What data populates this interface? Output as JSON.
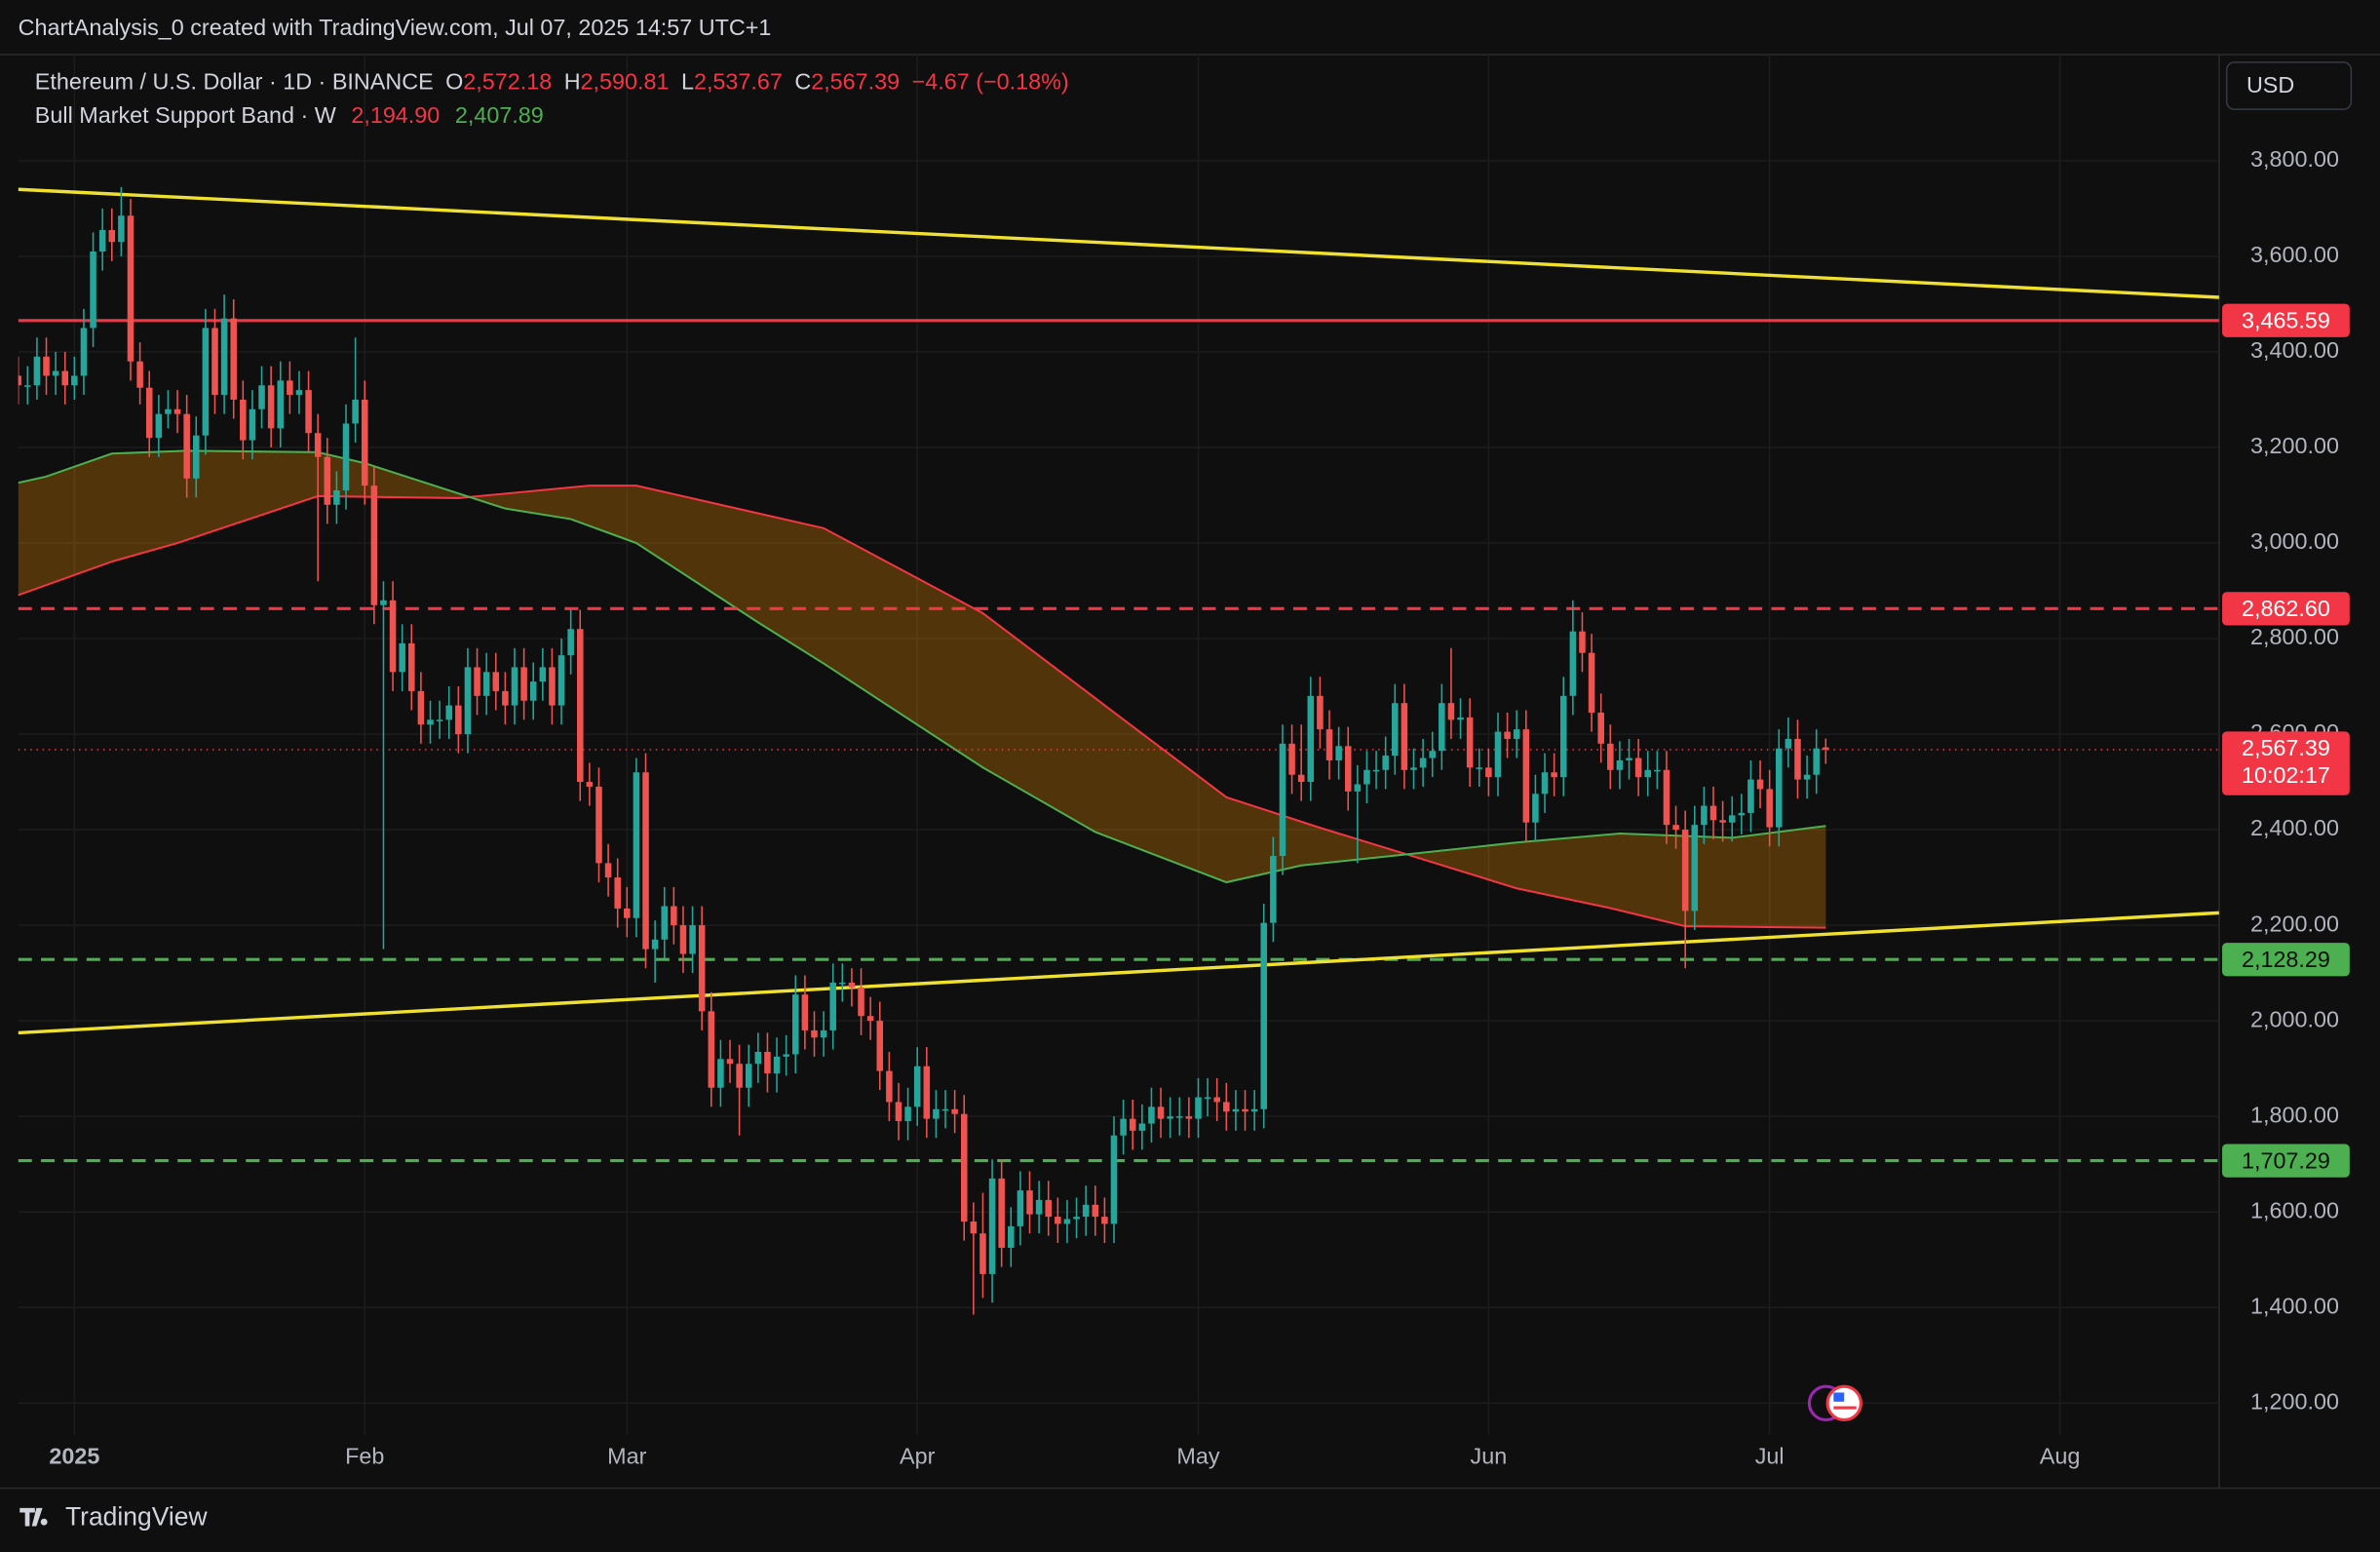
{
  "header": {
    "title": "ChartAnalysis_0 created with TradingView.com, Jul 07, 2025 14:57 UTC+1"
  },
  "chart_data": {
    "type": "candlestick",
    "legend": {
      "symbol": "Ethereum / U.S. Dollar · 1D · BINANCE",
      "open_key": "O",
      "open": "2,572.18",
      "high_key": "H",
      "high": "2,590.81",
      "low_key": "L",
      "low": "2,537.67",
      "close_key": "C",
      "close": "2,567.39",
      "change": "−4.67 (−0.18%)"
    },
    "categories": [
      null,
      null,
      null,
      null,
      null,
      null,
      "2025",
      null,
      null,
      null,
      null,
      null,
      null,
      null,
      null,
      null,
      null,
      null,
      null,
      null,
      null,
      null,
      null,
      null,
      null,
      null,
      null,
      null,
      null,
      null,
      null,
      null,
      null,
      null,
      null,
      null,
      null,
      "Feb",
      null,
      null,
      null,
      null,
      null,
      null,
      null,
      null,
      null,
      null,
      null,
      null,
      null,
      null,
      null,
      null,
      null,
      null,
      null,
      null,
      null,
      null,
      null,
      null,
      null,
      null,
      null,
      "Mar",
      null,
      null,
      null,
      null,
      null,
      null,
      null,
      null,
      null,
      null,
      null,
      null,
      null,
      null,
      null,
      null,
      null,
      null,
      null,
      null,
      null,
      null,
      null,
      null,
      null,
      null,
      null,
      null,
      null,
      null,
      "Apr",
      null,
      null,
      null,
      null,
      null,
      null,
      null,
      null,
      null,
      null,
      null,
      null,
      null,
      null,
      null,
      null,
      null,
      null,
      null,
      null,
      null,
      null,
      null,
      null,
      null,
      null,
      null,
      null,
      null,
      "May",
      null,
      null,
      null,
      null,
      null,
      null,
      null,
      null,
      null,
      null,
      null,
      null,
      null,
      null,
      null,
      null,
      null,
      null,
      null,
      null,
      null,
      null,
      null,
      null,
      null,
      null,
      null,
      null,
      null,
      null,
      "Jun",
      null,
      null,
      null,
      null,
      null,
      null,
      null,
      null,
      null,
      null,
      null,
      null,
      null,
      null,
      null,
      null,
      null,
      null,
      null,
      null,
      null,
      null,
      null,
      null,
      null,
      null,
      null,
      null,
      null,
      "Jul",
      null,
      null,
      null,
      null,
      null,
      null,
      null,
      null,
      null,
      null,
      null,
      null,
      null,
      null,
      null,
      null,
      null,
      null,
      null,
      null,
      null,
      null,
      null,
      null,
      null,
      null,
      null,
      null,
      null,
      null,
      "Aug",
      null,
      null,
      null,
      null,
      null,
      null,
      null,
      null,
      null,
      null,
      null,
      null,
      null,
      null,
      null,
      null,
      null
    ],
    "open": [
      3350,
      3330,
      3330,
      3390,
      3350,
      3360,
      3330,
      3350,
      3450,
      3610,
      3655,
      3630,
      3685,
      3380,
      3325,
      3220,
      3270,
      3280,
      3270,
      3135,
      3225,
      3450,
      3310,
      3470,
      3300,
      3215,
      3280,
      3330,
      3240,
      3340,
      3310,
      3320,
      3230,
      3180,
      3080,
      3110,
      3250,
      3300,
      3120,
      2870,
      2880,
      2730,
      2790,
      2690,
      2620,
      2630,
      2630,
      2660,
      2600,
      2740,
      2680,
      2730,
      2690,
      2660,
      2740,
      2670,
      2710,
      2740,
      2660,
      2765,
      2820,
      2500,
      2490,
      2330,
      2300,
      2235,
      2215,
      2520,
      2150,
      2170,
      2240,
      2200,
      2140,
      2200,
      2020,
      1860,
      1920,
      1910,
      1860,
      1910,
      1935,
      1890,
      1925,
      1930,
      2055,
      1980,
      1965,
      1980,
      2080,
      2080,
      2070,
      2010,
      2000,
      1895,
      1830,
      1790,
      1820,
      1905,
      1795,
      1815,
      1815,
      1805,
      1580,
      1555,
      1470,
      1670,
      1525,
      1570,
      1645,
      1595,
      1625,
      1590,
      1575,
      1585,
      1590,
      1615,
      1590,
      1575,
      1760,
      1795,
      1770,
      1785,
      1820,
      1795,
      1800,
      1800,
      1795,
      1840,
      1840,
      1830,
      1810,
      1815,
      1810,
      1815,
      2205,
      2345,
      2580,
      2515,
      2500,
      2680,
      2610,
      2545,
      2575,
      2480,
      2495,
      2525,
      2525,
      2555,
      2665,
      2525,
      2530,
      2550,
      2565,
      2665,
      2630,
      2635,
      2530,
      2530,
      2510,
      2605,
      2590,
      2610,
      2415,
      2475,
      2520,
      2510,
      2680,
      2815,
      2770,
      2645,
      2580,
      2525,
      2545,
      2550,
      2510,
      2525,
      2525,
      2410,
      2400,
      2230,
      2410,
      2450,
      2420,
      2415,
      2430,
      2435,
      2505,
      2485,
      2405,
      2570,
      2590,
      2505,
      2515,
      2572.18,
      null,
      null,
      null,
      null,
      null,
      null,
      null,
      null,
      null,
      null,
      null,
      null,
      null,
      null,
      null,
      null,
      null,
      null,
      null,
      null,
      null,
      null,
      null,
      null,
      null,
      null,
      null,
      null,
      null,
      null,
      null,
      null,
      null,
      null,
      null,
      null,
      null,
      null,
      null,
      null,
      null,
      null
    ],
    "high": [
      3390,
      3370,
      3430,
      3430,
      3400,
      3400,
      3390,
      3490,
      3650,
      3700,
      3700,
      3745,
      3720,
      3420,
      3360,
      3310,
      3320,
      3320,
      3310,
      3265,
      3490,
      3490,
      3520,
      3510,
      3340,
      3320,
      3370,
      3370,
      3380,
      3380,
      3360,
      3360,
      3270,
      3220,
      3150,
      3290,
      3430,
      3340,
      3160,
      2920,
      2920,
      2830,
      2830,
      2730,
      2670,
      2670,
      2700,
      2700,
      2780,
      2780,
      2770,
      2770,
      2730,
      2780,
      2780,
      2750,
      2780,
      2780,
      2800,
      2860,
      2860,
      2540,
      2530,
      2370,
      2340,
      2280,
      2550,
      2560,
      2210,
      2280,
      2280,
      2240,
      2240,
      2240,
      2060,
      1960,
      1960,
      1950,
      1950,
      1975,
      1975,
      1965,
      1970,
      2095,
      2095,
      2020,
      2020,
      2120,
      2120,
      2110,
      2110,
      2050,
      2040,
      1935,
      1870,
      1860,
      1945,
      1945,
      1855,
      1855,
      1855,
      1845,
      1620,
      1640,
      1710,
      1710,
      1610,
      1685,
      1685,
      1665,
      1665,
      1630,
      1625,
      1630,
      1655,
      1655,
      1630,
      1800,
      1835,
      1835,
      1825,
      1860,
      1860,
      1840,
      1840,
      1840,
      1880,
      1880,
      1880,
      1870,
      1855,
      1855,
      1855,
      2245,
      2385,
      2620,
      2620,
      2620,
      2720,
      2720,
      2650,
      2615,
      2615,
      2535,
      2565,
      2565,
      2595,
      2705,
      2705,
      2570,
      2590,
      2605,
      2705,
      2780,
      2675,
      2675,
      2570,
      2570,
      2645,
      2645,
      2650,
      2650,
      2515,
      2560,
      2560,
      2720,
      2880,
      2855,
      2810,
      2685,
      2620,
      2585,
      2590,
      2590,
      2565,
      2565,
      2565,
      2450,
      2440,
      2450,
      2490,
      2490,
      2460,
      2470,
      2475,
      2545,
      2545,
      2525,
      2610,
      2635,
      2630,
      2555,
      2610,
      2590.81,
      null,
      null,
      null,
      null,
      null,
      null,
      null,
      null,
      null,
      null,
      null,
      null,
      null,
      null,
      null,
      null,
      null,
      null,
      null,
      null,
      null,
      null,
      null,
      null,
      null,
      null,
      null,
      null,
      null,
      null,
      null,
      null,
      null,
      null,
      null,
      null,
      null,
      null,
      null,
      null,
      null,
      null
    ],
    "low": [
      3290,
      3290,
      3300,
      3310,
      3310,
      3290,
      3300,
      3310,
      3410,
      3570,
      3590,
      3600,
      3340,
      3290,
      3180,
      3180,
      3240,
      3230,
      3095,
      3095,
      3185,
      3270,
      3270,
      3260,
      3175,
      3175,
      3240,
      3200,
      3200,
      3270,
      3270,
      3190,
      2920,
      3040,
      3040,
      3070,
      3210,
      3080,
      2830,
      2150,
      2690,
      2690,
      2650,
      2580,
      2580,
      2590,
      2590,
      2560,
      2560,
      2640,
      2640,
      2650,
      2620,
      2620,
      2630,
      2630,
      2670,
      2620,
      2620,
      2725,
      2460,
      2450,
      2290,
      2260,
      2195,
      2175,
      2175,
      2110,
      2080,
      2130,
      2160,
      2100,
      2100,
      1980,
      1820,
      1820,
      1870,
      1760,
      1820,
      1870,
      1850,
      1850,
      1885,
      1890,
      1940,
      1925,
      1925,
      1940,
      2040,
      2030,
      1970,
      1960,
      1855,
      1790,
      1750,
      1750,
      1780,
      1755,
      1755,
      1775,
      1765,
      1540,
      1385,
      1420,
      1410,
      1485,
      1485,
      1530,
      1555,
      1555,
      1550,
      1535,
      1535,
      1545,
      1550,
      1550,
      1535,
      1535,
      1720,
      1730,
      1730,
      1745,
      1755,
      1755,
      1760,
      1755,
      1755,
      1800,
      1790,
      1770,
      1770,
      1770,
      1770,
      1775,
      2165,
      2305,
      2475,
      2460,
      2460,
      2570,
      2505,
      2505,
      2440,
      2330,
      2455,
      2485,
      2485,
      2515,
      2485,
      2485,
      2490,
      2510,
      2525,
      2590,
      2590,
      2490,
      2490,
      2470,
      2470,
      2550,
      2550,
      2375,
      2375,
      2435,
      2470,
      2470,
      2640,
      2730,
      2605,
      2540,
      2485,
      2485,
      2505,
      2470,
      2470,
      2485,
      2370,
      2360,
      2110,
      2190,
      2370,
      2380,
      2375,
      2375,
      2390,
      2395,
      2445,
      2365,
      2365,
      2530,
      2465,
      2465,
      2475,
      2537.67,
      null,
      null,
      null,
      null,
      null,
      null,
      null,
      null,
      null,
      null,
      null,
      null,
      null,
      null,
      null,
      null,
      null,
      null,
      null,
      null,
      null,
      null,
      null,
      null,
      null,
      null,
      null,
      null,
      null,
      null,
      null,
      null,
      null,
      null,
      null,
      null,
      null,
      null,
      null,
      null,
      null,
      null
    ],
    "close": [
      3330,
      3330,
      3390,
      3350,
      3360,
      3330,
      3350,
      3450,
      3610,
      3655,
      3630,
      3685,
      3380,
      3325,
      3220,
      3270,
      3280,
      3270,
      3135,
      3225,
      3450,
      3310,
      3470,
      3300,
      3215,
      3280,
      3330,
      3240,
      3340,
      3310,
      3320,
      3230,
      3180,
      3080,
      3110,
      3250,
      3300,
      3120,
      2870,
      2880,
      2730,
      2790,
      2690,
      2620,
      2630,
      2630,
      2660,
      2600,
      2740,
      2680,
      2730,
      2690,
      2660,
      2740,
      2670,
      2710,
      2740,
      2660,
      2765,
      2820,
      2500,
      2490,
      2330,
      2300,
      2235,
      2215,
      2520,
      2150,
      2170,
      2240,
      2200,
      2140,
      2200,
      2020,
      1860,
      1920,
      1910,
      1860,
      1910,
      1935,
      1890,
      1925,
      1930,
      2055,
      1980,
      1965,
      1980,
      2080,
      2080,
      2070,
      2010,
      2000,
      1895,
      1830,
      1790,
      1820,
      1905,
      1795,
      1815,
      1815,
      1805,
      1580,
      1555,
      1470,
      1670,
      1525,
      1570,
      1645,
      1595,
      1625,
      1590,
      1575,
      1585,
      1590,
      1615,
      1590,
      1575,
      1760,
      1795,
      1770,
      1785,
      1820,
      1795,
      1800,
      1800,
      1795,
      1840,
      1840,
      1830,
      1810,
      1815,
      1810,
      1815,
      2205,
      2345,
      2580,
      2515,
      2500,
      2680,
      2610,
      2545,
      2575,
      2480,
      2495,
      2525,
      2525,
      2555,
      2665,
      2525,
      2530,
      2550,
      2565,
      2665,
      2630,
      2635,
      2530,
      2530,
      2510,
      2605,
      2590,
      2610,
      2415,
      2475,
      2520,
      2510,
      2680,
      2815,
      2770,
      2645,
      2580,
      2525,
      2545,
      2550,
      2510,
      2525,
      2525,
      2410,
      2400,
      2230,
      2410,
      2450,
      2420,
      2415,
      2430,
      2435,
      2505,
      2485,
      2405,
      2570,
      2590,
      2505,
      2515,
      2570,
      2567.39,
      null,
      null,
      null,
      null,
      null,
      null,
      null,
      null,
      null,
      null,
      null,
      null,
      null,
      null,
      null,
      null,
      null,
      null,
      null,
      null,
      null,
      null,
      null,
      null,
      null,
      null,
      null,
      null,
      null,
      null,
      null,
      null,
      null,
      null,
      null,
      null,
      null,
      null,
      null,
      null,
      null,
      null
    ],
    "up_color": "#26a69a",
    "down_color": "#ef5350",
    "ylim": [
      1133,
      4022
    ],
    "yticks": [
      {
        "value": 1200,
        "label": "1,200.00"
      },
      {
        "value": 1400,
        "label": "1,400.00"
      },
      {
        "value": 1600,
        "label": "1,600.00"
      },
      {
        "value": 1800,
        "label": "1,800.00"
      },
      {
        "value": 2000,
        "label": "2,000.00"
      },
      {
        "value": 2200,
        "label": "2,200.00"
      },
      {
        "value": 2400,
        "label": "2,400.00"
      },
      {
        "value": 2600,
        "label": "2,600.00"
      },
      {
        "value": 2800,
        "label": "2,800.00"
      },
      {
        "value": 3000,
        "label": "3,000.00"
      },
      {
        "value": 3200,
        "label": "3,200.00"
      },
      {
        "value": 3400,
        "label": "3,400.00"
      },
      {
        "value": 3600,
        "label": "3,600.00"
      },
      {
        "value": 3800,
        "label": "3,800.00"
      }
    ],
    "grid": true,
    "band": {
      "name": "Bull Market Support Band · W",
      "fill": "rgba(255,152,0,0.28)",
      "lines": [
        {
          "color": "#f23645",
          "legend_value": "2,194.90",
          "x": [
            0,
            10,
            17,
            32,
            47,
            61,
            66,
            86,
            103,
            115,
            129,
            139,
            149,
            160,
            170,
            178,
            193
          ],
          "values": [
            2891,
            2961,
            3000,
            3098,
            3094,
            3120,
            3120,
            3031,
            2853,
            2675,
            2468,
            2404,
            2344,
            2277,
            2236,
            2198,
            2194.9
          ]
        },
        {
          "color": "#4caf50",
          "legend_value": "2,407.89",
          "x": [
            0,
            3,
            10,
            18,
            32,
            37,
            52,
            59,
            66,
            79,
            86,
            103,
            115,
            129,
            137,
            149,
            160,
            171,
            183,
            193
          ],
          "values": [
            3126,
            3139,
            3187,
            3193,
            3190,
            3167,
            3072,
            3050,
            3000,
            2834,
            2748,
            2530,
            2395,
            2290,
            2325,
            2350,
            2373,
            2392,
            2383,
            2407.89
          ]
        }
      ]
    },
    "trendlines": [
      {
        "color": "#f0e130",
        "x": [
          0,
          235
        ],
        "values": [
          3740,
          3514
        ]
      },
      {
        "color": "#f0e130",
        "x": [
          0,
          235
        ],
        "values": [
          1975,
          2226
        ]
      }
    ],
    "levels": [
      {
        "value": 3465.59,
        "label": "3,465.59",
        "color": "#f23645",
        "style": "solid"
      },
      {
        "value": 2862.6,
        "label": "2,862.60",
        "color": "#f23645",
        "style": "dashed"
      },
      {
        "value": 2128.29,
        "label": "2,128.29",
        "color": "#4caf50",
        "style": "dashed"
      },
      {
        "value": 1707.29,
        "label": "1,707.29",
        "color": "#4caf50",
        "style": "dashed"
      }
    ],
    "last_price": {
      "value": 2567.39,
      "label": "2,567.39",
      "countdown": "10:02:17",
      "color": "#f23645"
    },
    "currency": "USD"
  },
  "footer": {
    "brand": "TradingView"
  }
}
